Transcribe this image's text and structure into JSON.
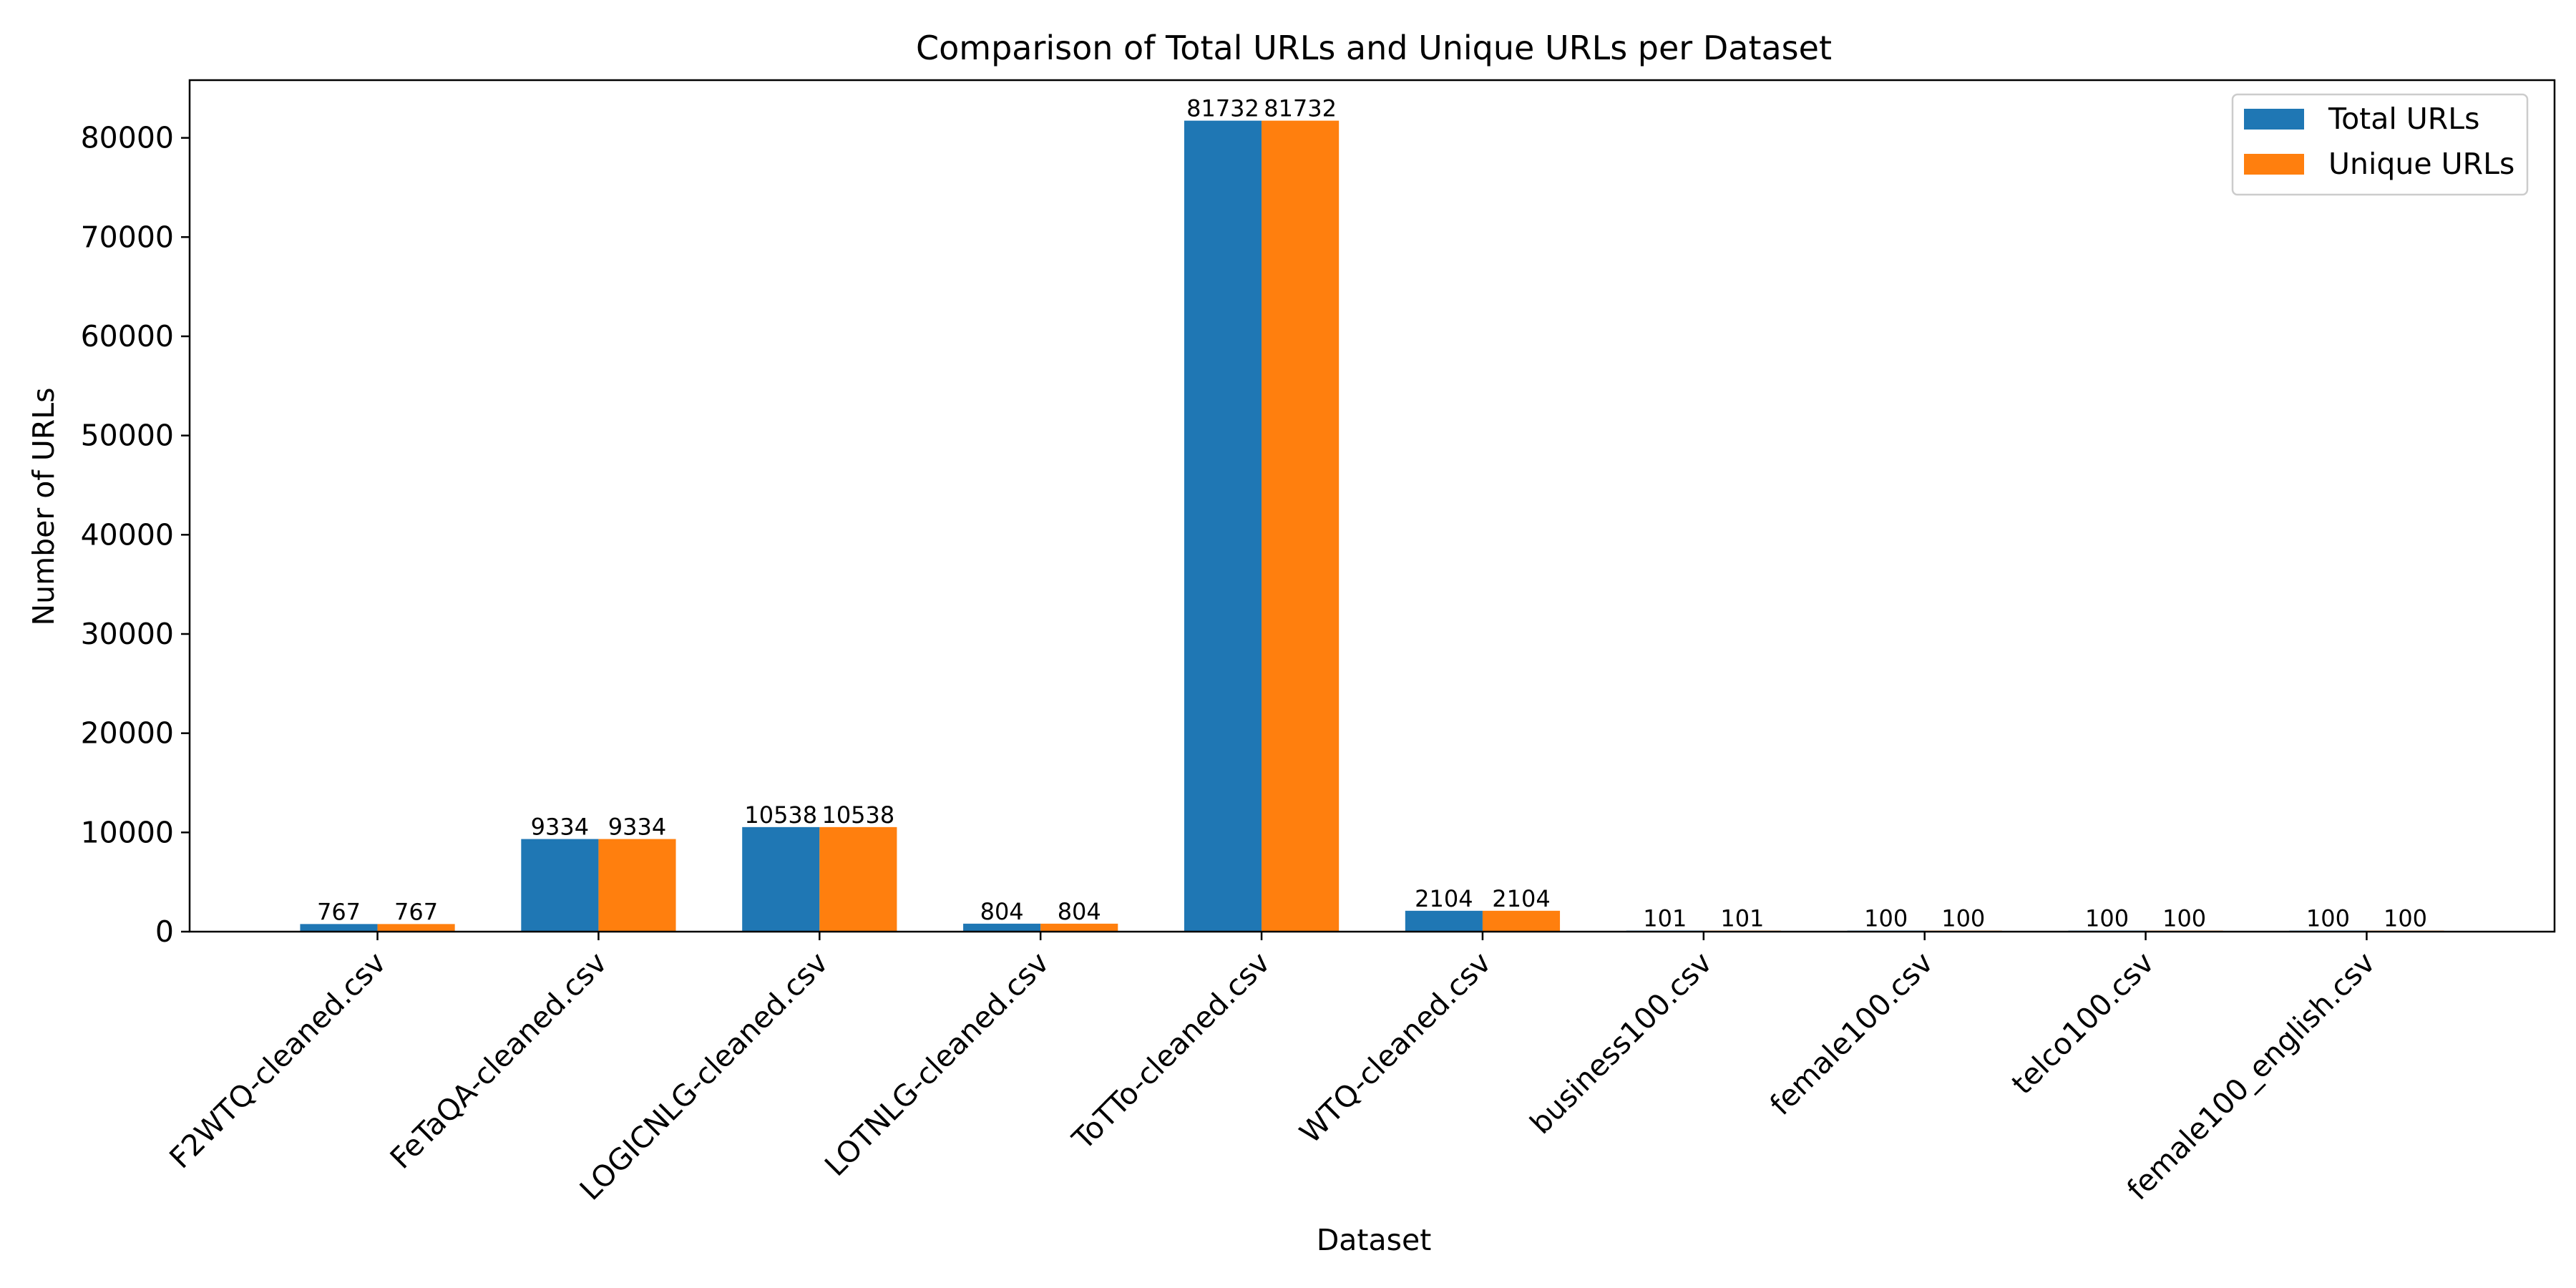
{
  "chart_data": {
    "type": "bar",
    "title": "Comparison of Total URLs and Unique URLs per Dataset",
    "xlabel": "Dataset",
    "ylabel": "Number of URLs",
    "categories": [
      "F2WTQ-cleaned.csv",
      "FeTaQA-cleaned.csv",
      "LOGICNLG-cleaned.csv",
      "LOTNLG-cleaned.csv",
      "ToTTo-cleaned.csv",
      "WTQ-cleaned.csv",
      "business100.csv",
      "female100.csv",
      "telco100.csv",
      "female100_english.csv"
    ],
    "series": [
      {
        "name": "Total URLs",
        "color": "#1f77b4",
        "values": [
          767,
          9334,
          10538,
          804,
          81732,
          2104,
          101,
          100,
          100,
          100
        ]
      },
      {
        "name": "Unique URLs",
        "color": "#ff7f0e",
        "values": [
          767,
          9334,
          10538,
          804,
          81732,
          2104,
          101,
          100,
          100,
          100
        ]
      }
    ],
    "ylim": [
      0,
      85816
    ],
    "yticks": [
      0,
      10000,
      20000,
      30000,
      40000,
      50000,
      60000,
      70000,
      80000
    ],
    "grid": false,
    "legend_position": "upper right",
    "bar_labels": true
  }
}
